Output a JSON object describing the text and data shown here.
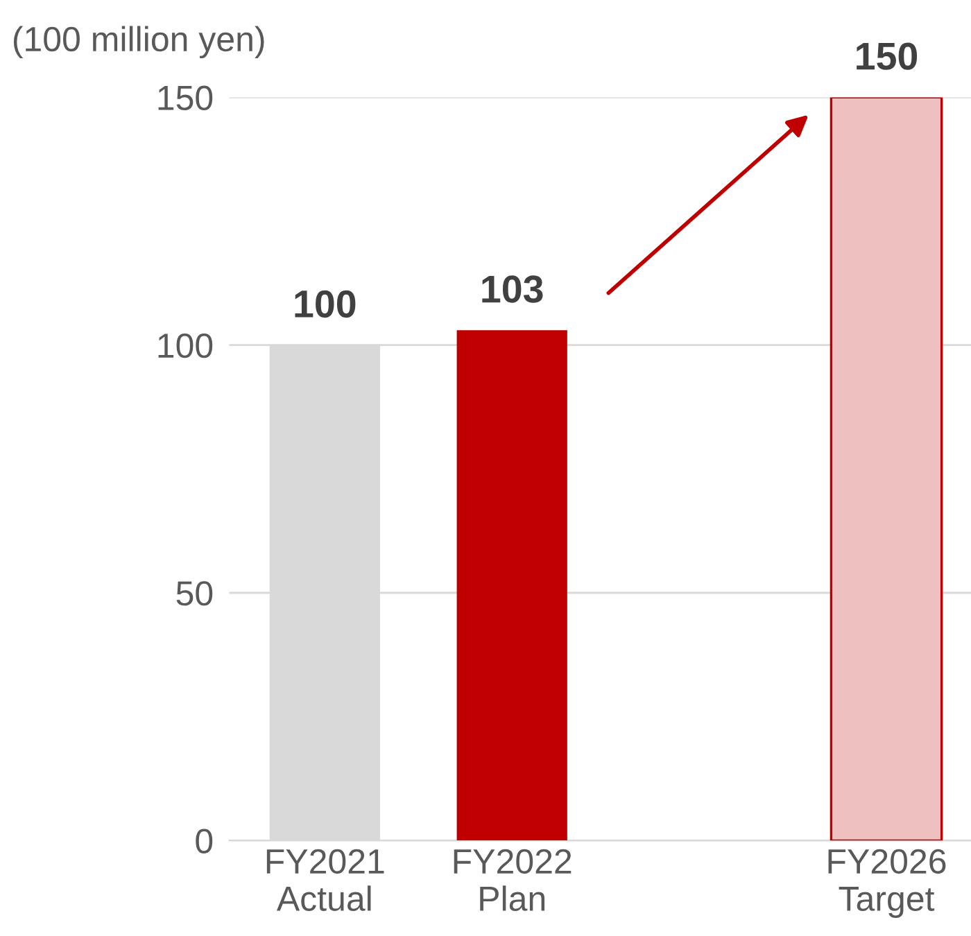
{
  "chart_data": {
    "type": "bar",
    "ylabel": "(100 million yen)",
    "categories": [
      "FY2021\nActual",
      "FY2022\nPlan",
      null,
      "FY2026\nTarget"
    ],
    "values": [
      100,
      103,
      null,
      150
    ],
    "colors": [
      "#d9d9d9",
      "#c00000",
      null,
      "#efc0c0"
    ],
    "ylim": [
      0,
      150
    ],
    "yticks": [
      0,
      50,
      100,
      150
    ],
    "grid": "y",
    "data_labels": true
  }
}
